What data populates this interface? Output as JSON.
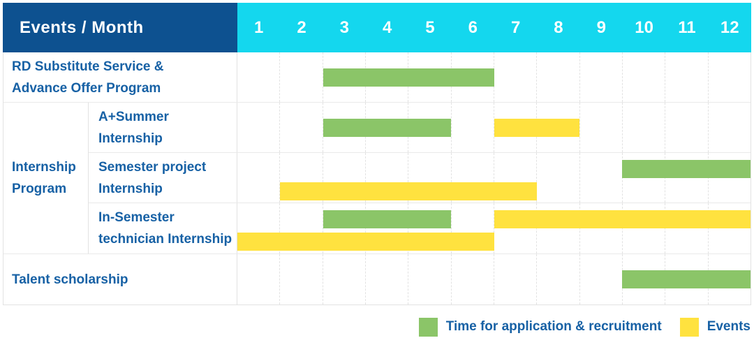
{
  "table": {
    "corner_label": "Events / Month",
    "months": [
      "1",
      "2",
      "3",
      "4",
      "5",
      "6",
      "7",
      "8",
      "9",
      "10",
      "11",
      "12"
    ],
    "row_labels": {
      "rd": "RD Substitute Service &\nAdvance Offer Program",
      "group_internship": "Internship\nProgram",
      "a_summer": "A+Summer\nInternship",
      "semester_project": "Semester project\nInternship",
      "in_semester": "In-Semester\ntechnician Internship",
      "talent": "Talent scholarship"
    }
  },
  "legend": {
    "items": [
      {
        "label": "Time for application & recruitment",
        "color": "#8bc568"
      },
      {
        "label": "Events",
        "color": "#ffe23f"
      }
    ]
  },
  "colors": {
    "header_bg": "#0d5190",
    "months_bg": "#14d7ee",
    "green": "#8bc568",
    "yellow": "#ffe23f",
    "label_text": "#1761a5",
    "border": "#e2e2e2"
  },
  "chart_data": {
    "type": "gantt",
    "x_unit": "month",
    "x_range": [
      1,
      12
    ],
    "legend_position": "bottom-right",
    "series_legend": [
      {
        "name": "Time for application & recruitment",
        "color": "#8bc568"
      },
      {
        "name": "Events",
        "color": "#ffe23f"
      }
    ],
    "rows": [
      {
        "label": "RD Substitute Service & Advance Offer Program",
        "group": null,
        "bars": [
          {
            "series": "Time for application & recruitment",
            "color": "green",
            "start_month": 3,
            "end_month": 6,
            "lane": "center"
          }
        ]
      },
      {
        "label": "A+Summer Internship",
        "group": "Internship Program",
        "bars": [
          {
            "series": "Time for application & recruitment",
            "color": "green",
            "start_month": 3,
            "end_month": 5,
            "lane": "center"
          },
          {
            "series": "Events",
            "color": "yellow",
            "start_month": 7,
            "end_month": 8,
            "lane": "center"
          }
        ]
      },
      {
        "label": "Semester project Internship",
        "group": "Internship Program",
        "bars": [
          {
            "series": "Time for application & recruitment",
            "color": "green",
            "start_month": 10,
            "end_month": 12,
            "lane": "upper"
          },
          {
            "series": "Events",
            "color": "yellow",
            "start_month": 2,
            "end_month": 7,
            "lane": "lower"
          }
        ]
      },
      {
        "label": "In-Semester technician Internship",
        "group": "Internship Program",
        "bars": [
          {
            "series": "Time for application & recruitment",
            "color": "green",
            "start_month": 3,
            "end_month": 5,
            "lane": "upper"
          },
          {
            "series": "Events",
            "color": "yellow",
            "start_month": 7,
            "end_month": 12,
            "lane": "upper"
          },
          {
            "series": "Events",
            "color": "yellow",
            "start_month": 1,
            "end_month": 6,
            "lane": "lower"
          }
        ]
      },
      {
        "label": "Talent scholarship",
        "group": null,
        "bars": [
          {
            "series": "Time for application & recruitment",
            "color": "green",
            "start_month": 10,
            "end_month": 12,
            "lane": "center"
          }
        ]
      }
    ]
  }
}
